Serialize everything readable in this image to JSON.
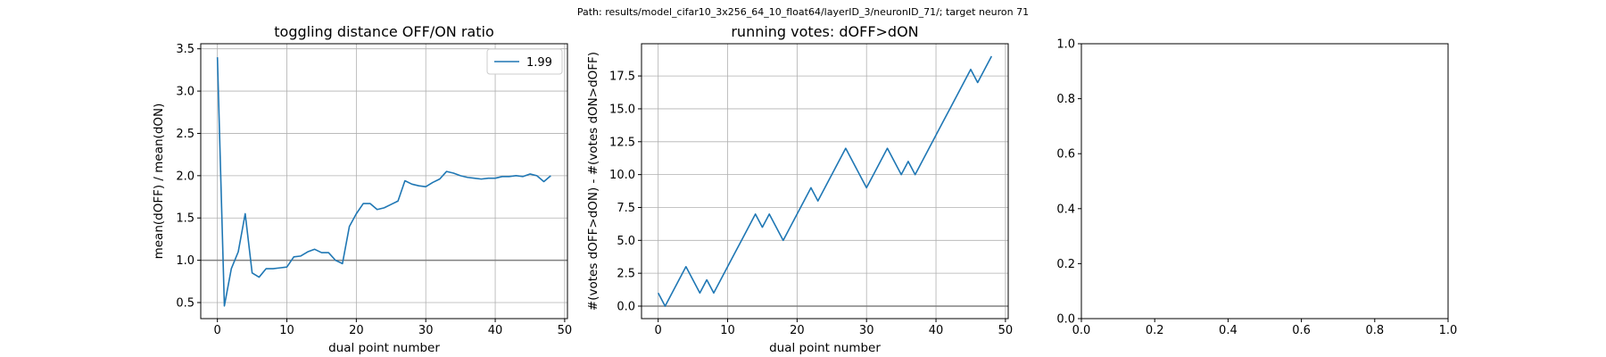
{
  "figure": {
    "suptitle": "Path: results/model_cifar10_3x256_64_10_float64/layerID_3/neuronID_71/; target neuron 71"
  },
  "colors": {
    "series": "#1f77b4",
    "grid": "#b0b0b0",
    "refline": "#808080",
    "axes": "#000000"
  },
  "chart_data": [
    {
      "type": "line",
      "title": "toggling distance OFF/ON ratio",
      "xlabel": "dual point number",
      "ylabel": "mean(dOFF) / mean(dON)",
      "xlim": [
        -2.4,
        50.4
      ],
      "ylim": [
        0.31,
        3.56
      ],
      "xticks": [
        0,
        10,
        20,
        30,
        40,
        50
      ],
      "xtick_labels": [
        "0",
        "10",
        "20",
        "30",
        "40",
        "50"
      ],
      "yticks": [
        0.5,
        1.0,
        1.5,
        2.0,
        2.5,
        3.0,
        3.5
      ],
      "ytick_labels": [
        "0.5",
        "1.0",
        "1.5",
        "2.0",
        "2.5",
        "3.0",
        "3.5"
      ],
      "grid": true,
      "hline": 1.0,
      "legend": {
        "position": "upper right",
        "entries": [
          "1.99"
        ]
      },
      "series": [
        {
          "name": "1.99",
          "x": [
            0,
            1,
            2,
            3,
            4,
            5,
            6,
            7,
            8,
            9,
            10,
            11,
            12,
            13,
            14,
            15,
            16,
            17,
            18,
            19,
            20,
            21,
            22,
            23,
            24,
            25,
            26,
            27,
            28,
            29,
            30,
            31,
            32,
            33,
            34,
            35,
            36,
            37,
            38,
            39,
            40,
            41,
            42,
            43,
            44,
            45,
            46,
            47,
            48
          ],
          "y": [
            3.4,
            0.46,
            0.9,
            1.1,
            1.55,
            0.85,
            0.8,
            0.9,
            0.9,
            0.91,
            0.92,
            1.04,
            1.05,
            1.1,
            1.13,
            1.09,
            1.09,
            1.0,
            0.96,
            1.4,
            1.55,
            1.67,
            1.67,
            1.6,
            1.62,
            1.66,
            1.7,
            1.94,
            1.9,
            1.88,
            1.87,
            1.92,
            1.96,
            2.05,
            2.03,
            2.0,
            1.98,
            1.97,
            1.96,
            1.97,
            1.97,
            1.99,
            1.99,
            2.0,
            1.99,
            2.02,
            2.0,
            1.93,
            2.0
          ]
        }
      ]
    },
    {
      "type": "line",
      "title": "running votes: dOFF>dON",
      "xlabel": "dual point number",
      "ylabel": "#(votes dOFF>dON) - #(votes dON>dOFF)",
      "xlim": [
        -2.4,
        50.4
      ],
      "ylim": [
        -0.95,
        19.95
      ],
      "xticks": [
        0,
        10,
        20,
        30,
        40,
        50
      ],
      "xtick_labels": [
        "0",
        "10",
        "20",
        "30",
        "40",
        "50"
      ],
      "yticks": [
        0.0,
        2.5,
        5.0,
        7.5,
        10.0,
        12.5,
        15.0,
        17.5
      ],
      "ytick_labels": [
        "0.0",
        "2.5",
        "5.0",
        "7.5",
        "10.0",
        "12.5",
        "15.0",
        "17.5"
      ],
      "grid": true,
      "hline": 0.0,
      "series": [
        {
          "x": [
            0,
            1,
            2,
            3,
            4,
            5,
            6,
            7,
            8,
            9,
            10,
            11,
            12,
            13,
            14,
            15,
            16,
            17,
            18,
            19,
            20,
            21,
            22,
            23,
            24,
            25,
            26,
            27,
            28,
            29,
            30,
            31,
            32,
            33,
            34,
            35,
            36,
            37,
            38,
            39,
            40,
            41,
            42,
            43,
            44,
            45,
            46,
            47,
            48
          ],
          "y": [
            1,
            0,
            1,
            2,
            3,
            2,
            1,
            2,
            1,
            2,
            3,
            4,
            5,
            6,
            7,
            6,
            7,
            6,
            5,
            6,
            7,
            8,
            9,
            8,
            9,
            10,
            11,
            12,
            11,
            10,
            9,
            10,
            11,
            12,
            11,
            10,
            11,
            10,
            11,
            12,
            13,
            14,
            15,
            16,
            17,
            18,
            17,
            18,
            19
          ]
        }
      ]
    },
    {
      "type": "line",
      "title": "",
      "xlabel": "",
      "ylabel": "",
      "xlim": [
        0,
        1
      ],
      "ylim": [
        0,
        1
      ],
      "xticks": [
        0.0,
        0.2,
        0.4,
        0.6,
        0.8,
        1.0
      ],
      "xtick_labels": [
        "0.0",
        "0.2",
        "0.4",
        "0.6",
        "0.8",
        "1.0"
      ],
      "yticks": [
        0.0,
        0.2,
        0.4,
        0.6,
        0.8,
        1.0
      ],
      "ytick_labels": [
        "0.0",
        "0.2",
        "0.4",
        "0.6",
        "0.8",
        "1.0"
      ],
      "grid": false,
      "series": []
    }
  ]
}
